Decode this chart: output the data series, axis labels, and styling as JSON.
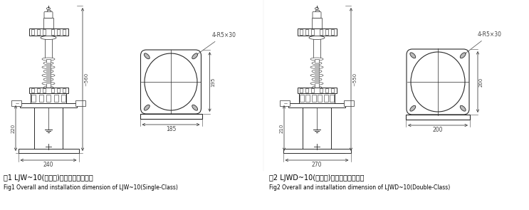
{
  "bg_color": "#ffffff",
  "line_color": "#2a2a2a",
  "dim_color": "#444444",
  "gray_color": "#888888",
  "light_gray": "#bbbbbb",
  "caption1_zh": "图1 LJW~10(单级次)外型及安装尺寸图",
  "caption1_en": "Fig1 Overall and installation dimension of LJW~10(Single-Class)",
  "caption2_zh": "图2 LJWD~10(双级次)外型及安装尺寸图",
  "caption2_en": "Fig2 Overall and installation dimension of LJWD~10(Double-Class)"
}
